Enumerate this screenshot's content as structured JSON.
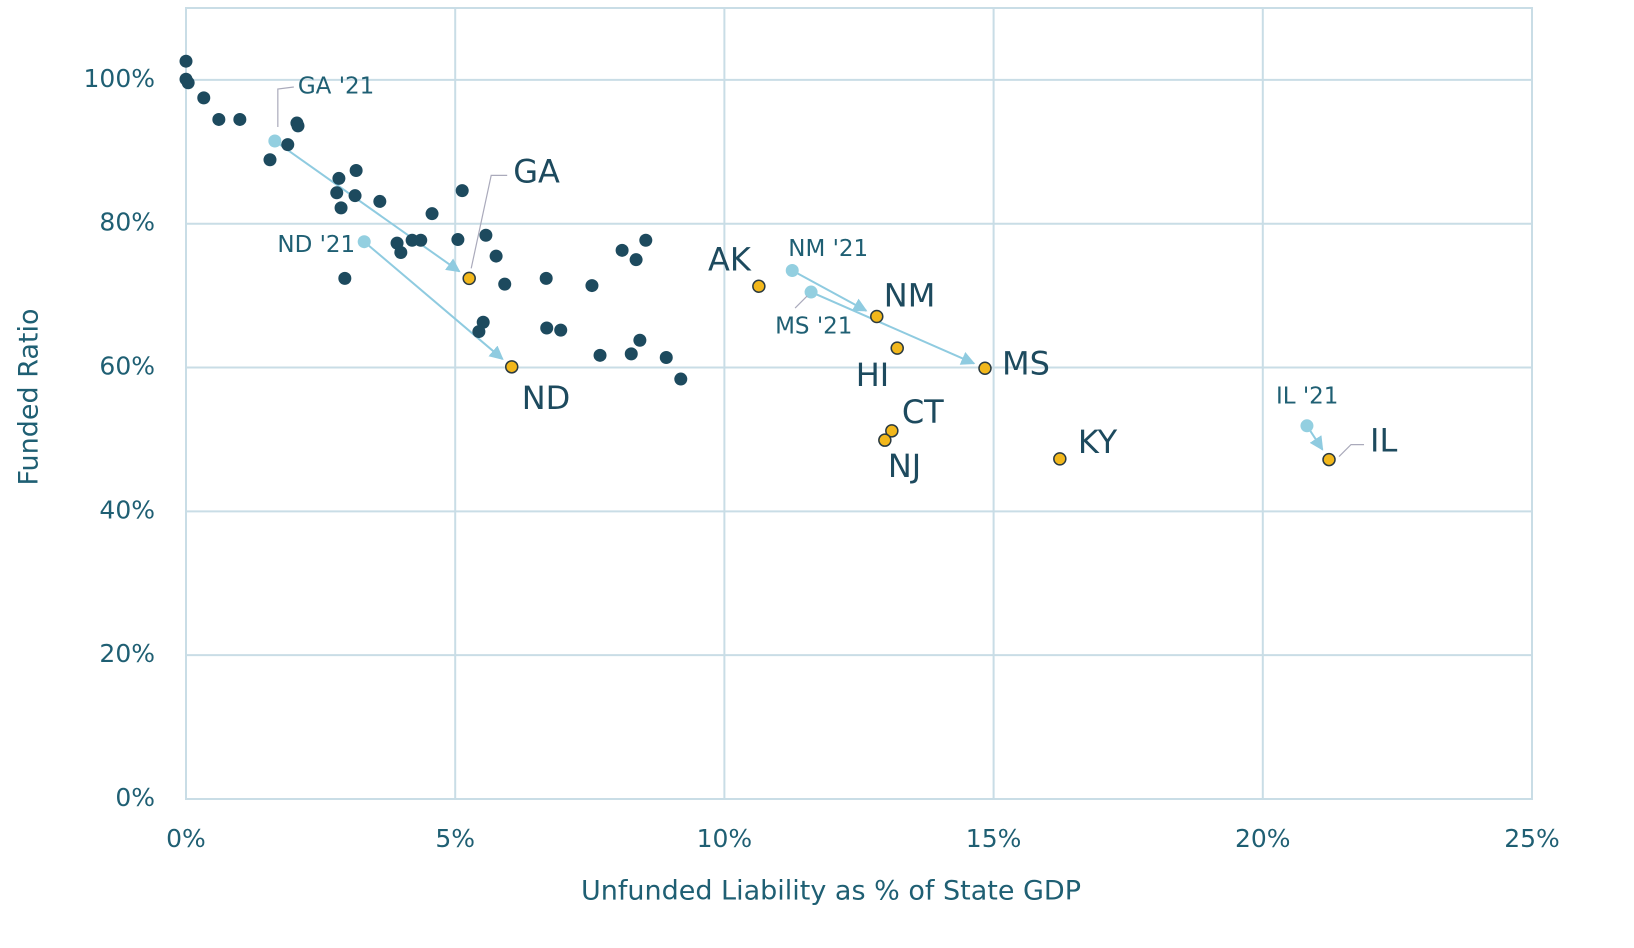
{
  "chart_data": {
    "type": "scatter",
    "x_label": "Unfunded Liability as % of State GDP",
    "y_label": "Funded Ratio",
    "xlim": [
      0,
      25
    ],
    "ylim": [
      0,
      110
    ],
    "xticks": [
      {
        "value": 0,
        "label": "0%"
      },
      {
        "value": 5,
        "label": "5%"
      },
      {
        "value": 10,
        "label": "10%"
      },
      {
        "value": 15,
        "label": "15%"
      },
      {
        "value": 20,
        "label": "20%"
      },
      {
        "value": 25,
        "label": "25%"
      }
    ],
    "yticks": [
      {
        "value": 0,
        "label": "0%"
      },
      {
        "value": 20,
        "label": "20%"
      },
      {
        "value": 40,
        "label": "40%"
      },
      {
        "value": 60,
        "label": "60%"
      },
      {
        "value": 80,
        "label": "80%"
      },
      {
        "value": 100,
        "label": "100%"
      }
    ],
    "grid": true,
    "others": {
      "color": "#1d4a5e",
      "x": [
        0,
        0,
        0.04,
        0.33,
        0.61,
        1.0,
        2.06,
        2.08,
        1.89,
        1.56,
        3.16,
        2.84,
        5.13,
        2.8,
        3.14,
        3.6,
        2.88,
        4.57,
        5.05,
        5.57,
        4.2,
        4.36,
        3.92,
        3.99,
        5.76,
        8.54,
        8.1,
        8.36,
        2.95,
        6.69,
        5.92,
        7.54,
        5.52,
        5.44,
        6.7,
        6.96,
        8.43,
        7.69,
        8.27,
        8.92,
        9.19
      ],
      "y": [
        102.6,
        100.1,
        99.6,
        97.5,
        94.5,
        94.5,
        94.0,
        93.6,
        91.0,
        88.9,
        87.4,
        86.3,
        84.6,
        84.3,
        83.9,
        83.1,
        82.2,
        81.4,
        77.8,
        78.4,
        77.7,
        77.7,
        77.3,
        76.0,
        75.5,
        77.7,
        76.3,
        75.0,
        72.4,
        72.4,
        71.6,
        71.4,
        66.3,
        65.0,
        65.5,
        65.2,
        63.8,
        61.7,
        61.9,
        61.4,
        58.4
      ]
    },
    "highlighted": {
      "color": "#f2b71b",
      "labels": [
        "GA",
        "ND",
        "AK",
        "NM",
        "HI",
        "MS",
        "CT",
        "NJ",
        "KY",
        "IL"
      ],
      "x": [
        5.26,
        6.05,
        10.64,
        12.83,
        13.21,
        14.84,
        13.11,
        12.98,
        16.23,
        21.23
      ],
      "y": [
        72.4,
        60.1,
        71.3,
        67.1,
        62.7,
        59.9,
        51.2,
        49.9,
        47.3,
        47.2
      ]
    },
    "prior_year": {
      "color": "#93cfe0",
      "labels": [
        "GA '21",
        "ND '21",
        null,
        "NM '21",
        null,
        "MS '21",
        null,
        null,
        null,
        "IL '21"
      ],
      "x": [
        1.65,
        3.31,
        null,
        11.26,
        null,
        11.61,
        null,
        null,
        null,
        20.82
      ],
      "y": [
        91.5,
        77.5,
        null,
        73.5,
        null,
        70.5,
        null,
        null,
        null,
        51.9
      ]
    }
  }
}
